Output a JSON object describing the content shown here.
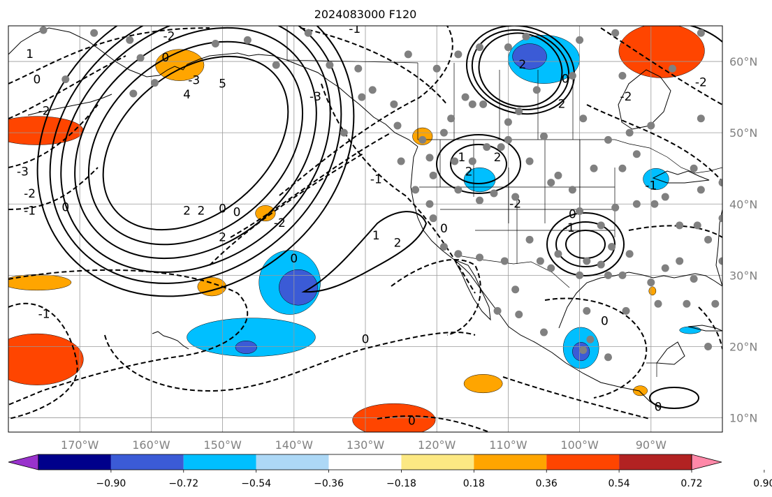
{
  "chart_data": {
    "type": "map",
    "title": "2024083000 F120",
    "projection": "equirectangular",
    "lon_range": [
      -180,
      -80
    ],
    "lat_range": [
      8,
      65
    ],
    "lon_ticks": [
      {
        "value": -170,
        "label": "170°W"
      },
      {
        "value": -160,
        "label": "160°W"
      },
      {
        "value": -150,
        "label": "150°W"
      },
      {
        "value": -140,
        "label": "140°W"
      },
      {
        "value": -130,
        "label": "130°W"
      },
      {
        "value": -120,
        "label": "120°W"
      },
      {
        "value": -110,
        "label": "110°W"
      },
      {
        "value": -100,
        "label": "100°W"
      },
      {
        "value": -90,
        "label": "90°W"
      }
    ],
    "lat_ticks": [
      {
        "value": 60,
        "label": "60°N"
      },
      {
        "value": 50,
        "label": "50°N"
      },
      {
        "value": 40,
        "label": "40°N"
      },
      {
        "value": 30,
        "label": "30°N"
      },
      {
        "value": 20,
        "label": "20°N"
      },
      {
        "value": 10,
        "label": "10°N"
      }
    ],
    "grid": true,
    "colorbar": {
      "boundaries": [
        -1.08,
        -0.9,
        -0.72,
        -0.54,
        -0.36,
        -0.18,
        0.18,
        0.36,
        0.54,
        0.72,
        0.9,
        1.08
      ],
      "colors": [
        "#9932cc",
        "#00008b",
        "#3b5bd6",
        "#00bfff",
        "#add8f6",
        "#ffffff",
        "#fce883",
        "#ffa500",
        "#ff4500",
        "#b22222",
        "#ff88a8"
      ],
      "labels": [
        "−0.90",
        "−0.72",
        "−0.54",
        "−0.36",
        "−0.18",
        "0.18",
        "0.36",
        "0.54",
        "0.72",
        "0.90"
      ],
      "extend": "both"
    },
    "shaded_regions": [
      {
        "value": 0.4,
        "lon": -156,
        "lat": 59.5,
        "rx": 3.4,
        "ry": 2.2
      },
      {
        "value": 0.55,
        "lon": -176,
        "lat": 50.3,
        "rx": 6.5,
        "ry": 2.0
      },
      {
        "value": 0.4,
        "lon": -176,
        "lat": 29.0,
        "rx": 4.8,
        "ry": 1.1
      },
      {
        "value": 0.4,
        "lon": -151.5,
        "lat": 28.4,
        "rx": 2.0,
        "ry": 1.3
      },
      {
        "value": 0.4,
        "lon": -144,
        "lat": 38.7,
        "rx": 1.4,
        "ry": 1.1
      },
      {
        "value": 0.6,
        "lon": -176,
        "lat": 18.2,
        "rx": 6.5,
        "ry": 3.6
      },
      {
        "value": 0.6,
        "lon": -126,
        "lat": 9.7,
        "rx": 5.8,
        "ry": 2.3
      },
      {
        "value": 0.4,
        "lon": -113.5,
        "lat": 14.8,
        "rx": 2.7,
        "ry": 1.3
      },
      {
        "value": 0.55,
        "lon": -88.5,
        "lat": 61.5,
        "rx": 6.0,
        "ry": 3.8
      },
      {
        "value": 0.4,
        "lon": -122,
        "lat": 49.5,
        "rx": 1.4,
        "ry": 1.2
      },
      {
        "value": 0.4,
        "lon": -91.5,
        "lat": 13.8,
        "rx": 1.0,
        "ry": 0.7
      },
      {
        "value": 0.4,
        "lon": -89.8,
        "lat": 27.8,
        "rx": 0.5,
        "ry": 0.6
      },
      {
        "value": -0.5,
        "lon": -105,
        "lat": 60.3,
        "rx": 5.0,
        "ry": 3.4
      },
      {
        "value": -0.58,
        "lon": -107,
        "lat": 60.7,
        "rx": 2.4,
        "ry": 1.8
      },
      {
        "value": -0.5,
        "lon": -114,
        "lat": 43.4,
        "rx": 2.2,
        "ry": 1.7
      },
      {
        "value": -0.5,
        "lon": -99.8,
        "lat": 19.8,
        "rx": 2.5,
        "ry": 2.9
      },
      {
        "value": -0.58,
        "lon": -99.8,
        "lat": 19.3,
        "rx": 1.2,
        "ry": 1.3
      },
      {
        "value": -0.5,
        "lon": -89.3,
        "lat": 43.5,
        "rx": 1.8,
        "ry": 1.5
      },
      {
        "value": -0.5,
        "lon": -84.5,
        "lat": 22.3,
        "rx": 1.5,
        "ry": 0.5
      },
      {
        "value": -0.5,
        "lon": -146,
        "lat": 21.3,
        "rx": 9.0,
        "ry": 2.7
      },
      {
        "value": -0.5,
        "lon": -140.6,
        "lat": 29.0,
        "rx": 4.3,
        "ry": 4.5
      },
      {
        "value": -0.58,
        "lon": -139.4,
        "lat": 28.3,
        "rx": 2.7,
        "ry": 2.5
      },
      {
        "value": -0.58,
        "lon": -146.7,
        "lat": 19.9,
        "rx": 1.5,
        "ry": 0.9
      }
    ],
    "contour_labels": [
      {
        "text": "0",
        "lon": -176,
        "lat": 57.4
      },
      {
        "text": "0",
        "lon": -158,
        "lat": 60.5
      },
      {
        "text": "-3",
        "lon": -154,
        "lat": 57.3
      },
      {
        "text": "5",
        "lon": -150,
        "lat": 56.8
      },
      {
        "text": "4",
        "lon": -155,
        "lat": 55.3
      },
      {
        "text": "-2",
        "lon": -175,
        "lat": 53.0
      },
      {
        "text": "-3",
        "lon": -178,
        "lat": 44.5
      },
      {
        "text": "-2",
        "lon": -177,
        "lat": 41.4
      },
      {
        "text": "-1",
        "lon": -177,
        "lat": 39.0
      },
      {
        "text": "0",
        "lon": -172,
        "lat": 39.5
      },
      {
        "text": "-3",
        "lon": -137,
        "lat": 55.0
      },
      {
        "text": "-1",
        "lon": -131.5,
        "lat": 64.5
      },
      {
        "text": "-2",
        "lon": -157.5,
        "lat": 63.5
      },
      {
        "text": "2",
        "lon": -155,
        "lat": 39.0
      },
      {
        "text": "2",
        "lon": -153,
        "lat": 39.0
      },
      {
        "text": "0",
        "lon": -150,
        "lat": 39.3
      },
      {
        "text": "0",
        "lon": -148,
        "lat": 38.8
      },
      {
        "text": "2",
        "lon": -150,
        "lat": 35.3
      },
      {
        "text": "-2",
        "lon": -142,
        "lat": 37.3
      },
      {
        "text": "0",
        "lon": -140,
        "lat": 32.3
      },
      {
        "text": "1",
        "lon": -128.5,
        "lat": 35.5
      },
      {
        "text": "2",
        "lon": -125.5,
        "lat": 34.5
      },
      {
        "text": "-1",
        "lon": -128.5,
        "lat": 43.4
      },
      {
        "text": "0",
        "lon": -119,
        "lat": 36.5
      },
      {
        "text": "0",
        "lon": -130,
        "lat": 21.0
      },
      {
        "text": "-1",
        "lon": -175,
        "lat": 24.5
      },
      {
        "text": "2",
        "lon": -108,
        "lat": 59.5
      },
      {
        "text": "2",
        "lon": -111.5,
        "lat": 46.5
      },
      {
        "text": "0",
        "lon": -102,
        "lat": 57.5
      },
      {
        "text": "2",
        "lon": -102.5,
        "lat": 54.0
      },
      {
        "text": "-2",
        "lon": -93.5,
        "lat": 55.0
      },
      {
        "text": "-2",
        "lon": -83,
        "lat": 57.0
      },
      {
        "text": "-1",
        "lon": -90,
        "lat": 42.5
      },
      {
        "text": "1",
        "lon": -116.5,
        "lat": 46.5
      },
      {
        "text": "2",
        "lon": -115.5,
        "lat": 44.5
      },
      {
        "text": "-2",
        "lon": -109,
        "lat": 40.0
      },
      {
        "text": "-1",
        "lon": -101.5,
        "lat": 36.6
      },
      {
        "text": "0",
        "lon": -101,
        "lat": 38.5
      },
      {
        "text": "0",
        "lon": -96.5,
        "lat": 23.5
      },
      {
        "text": "0",
        "lon": -89,
        "lat": 11.5
      },
      {
        "text": "0",
        "lon": -123.5,
        "lat": 9.5
      },
      {
        "text": "1",
        "lon": -177,
        "lat": 61.0
      }
    ],
    "stations": [
      [
        -175.1,
        64.4
      ],
      [
        -168,
        64
      ],
      [
        -163,
        63
      ],
      [
        -161.5,
        60.5
      ],
      [
        -172,
        57.5
      ],
      [
        -162.5,
        55.5
      ],
      [
        -159.5,
        57
      ],
      [
        -151,
        62.5
      ],
      [
        -146.5,
        63
      ],
      [
        -142.5,
        59.5
      ],
      [
        -138,
        64
      ],
      [
        -135,
        59.5
      ],
      [
        -131,
        59
      ],
      [
        -124,
        61
      ],
      [
        -120,
        59
      ],
      [
        -117,
        61
      ],
      [
        -114,
        62
      ],
      [
        -110,
        62
      ],
      [
        -107.5,
        63.5
      ],
      [
        -100,
        63
      ],
      [
        -95,
        64
      ],
      [
        -83,
        64
      ],
      [
        -87,
        59
      ],
      [
        -94,
        58
      ],
      [
        -101,
        58
      ],
      [
        -106,
        56
      ],
      [
        -108.5,
        53
      ],
      [
        -110,
        51.5
      ],
      [
        -113.5,
        54
      ],
      [
        -115,
        54
      ],
      [
        -116,
        55
      ],
      [
        -110,
        49
      ],
      [
        -105,
        49.5
      ],
      [
        -99.5,
        52
      ],
      [
        -96,
        49
      ],
      [
        -93,
        50
      ],
      [
        -90,
        51
      ],
      [
        -83,
        52
      ],
      [
        -79.5,
        51
      ],
      [
        -133,
        50
      ],
      [
        -130.5,
        55
      ],
      [
        -125.5,
        51
      ],
      [
        -122,
        49
      ],
      [
        -119,
        50
      ],
      [
        -117.5,
        46
      ],
      [
        -121,
        46.5
      ],
      [
        -115,
        46
      ],
      [
        -113,
        48
      ],
      [
        -111,
        48
      ],
      [
        -107,
        46
      ],
      [
        -103,
        44
      ],
      [
        -98,
        45
      ],
      [
        -94,
        45
      ],
      [
        -92,
        47
      ],
      [
        -95,
        39.5
      ],
      [
        -92,
        40
      ],
      [
        -88,
        41
      ],
      [
        -83,
        42
      ],
      [
        -80,
        43
      ],
      [
        -78,
        45
      ],
      [
        -84,
        45
      ],
      [
        -89.5,
        40
      ],
      [
        -86,
        37
      ],
      [
        -83.5,
        37
      ],
      [
        -80,
        38
      ],
      [
        -77,
        38
      ],
      [
        -78,
        35.5
      ],
      [
        -82,
        35
      ],
      [
        -86,
        32
      ],
      [
        -80,
        32
      ],
      [
        -84,
        29.5
      ],
      [
        -88,
        31
      ],
      [
        -94,
        30
      ],
      [
        -90,
        29
      ],
      [
        -96,
        30
      ],
      [
        -93,
        33
      ],
      [
        -99,
        32
      ],
      [
        -103,
        33
      ],
      [
        -105.5,
        32
      ],
      [
        -107,
        35
      ],
      [
        -110.5,
        32
      ],
      [
        -114,
        32.5
      ],
      [
        -117,
        33
      ],
      [
        -119,
        34
      ],
      [
        -120.5,
        38
      ],
      [
        -121,
        40
      ],
      [
        -123,
        42
      ],
      [
        -125,
        46
      ],
      [
        -120.5,
        44
      ],
      [
        -117,
        42
      ],
      [
        -114,
        40.5
      ],
      [
        -112,
        41.5
      ],
      [
        -109,
        41
      ],
      [
        -104,
        43
      ],
      [
        -101,
        42
      ],
      [
        -100,
        39
      ],
      [
        -97,
        37
      ],
      [
        -95.5,
        34
      ],
      [
        -100,
        30
      ],
      [
        -104,
        31
      ],
      [
        -109,
        28
      ],
      [
        -108.5,
        24.5
      ],
      [
        -111.5,
        25
      ],
      [
        -105,
        22
      ],
      [
        -99,
        25
      ],
      [
        -98.5,
        21
      ],
      [
        -97,
        31.5
      ],
      [
        -89,
        26
      ],
      [
        -85,
        26
      ],
      [
        -81,
        26
      ],
      [
        -78,
        29
      ],
      [
        -82,
        20
      ],
      [
        -79,
        16
      ],
      [
        -93.5,
        25
      ],
      [
        -96,
        18.5
      ],
      [
        -99.5,
        19.5
      ],
      [
        -118,
        52
      ],
      [
        -126,
        54
      ],
      [
        -129,
        56
      ]
    ]
  }
}
